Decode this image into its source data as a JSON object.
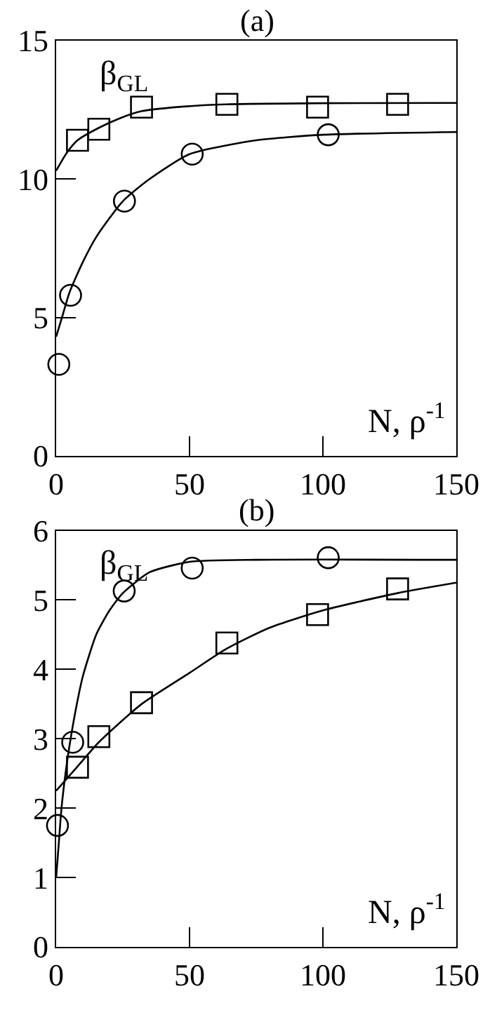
{
  "chart_data": [
    {
      "type": "scatter",
      "title": "(a)",
      "xlabel": "N, ρ$^{-1}$",
      "ylabel": "β$_{GL}$",
      "xlim": [
        0,
        150
      ],
      "ylim": [
        0,
        15
      ],
      "xticks": [
        0,
        50,
        100,
        150
      ],
      "yticks": [
        0,
        5,
        10,
        15
      ],
      "series": [
        {
          "marker": "square",
          "color": "#000000",
          "x": [
            8,
            16,
            32,
            64,
            98,
            128
          ],
          "values": [
            11.4,
            11.8,
            12.6,
            12.7,
            12.6,
            12.7
          ]
        },
        {
          "marker": "circle",
          "color": "#000000",
          "x": [
            1,
            5.4,
            25.6,
            51,
            102
          ],
          "values": [
            3.3,
            5.8,
            9.2,
            10.9,
            11.6
          ]
        },
        {
          "type": "line",
          "marker": "none",
          "line_style": "solid",
          "color": "#000000",
          "x": [
            0,
            4,
            8,
            16,
            24,
            32,
            48,
            64,
            100,
            150
          ],
          "values": [
            10.3,
            10.95,
            11.4,
            11.85,
            12.2,
            12.45,
            12.62,
            12.7,
            12.74,
            12.75
          ]
        },
        {
          "type": "line",
          "marker": "none",
          "line_style": "solid",
          "color": "#000000",
          "x": [
            0,
            2.5,
            5,
            10,
            15,
            25,
            35,
            50,
            75,
            100,
            150
          ],
          "values": [
            4.3,
            5.1,
            5.9,
            7.0,
            7.9,
            9.2,
            10.0,
            10.9,
            11.4,
            11.6,
            11.7
          ]
        }
      ]
    },
    {
      "type": "scatter",
      "title": "(b)",
      "xlabel": "N, ρ$^{-1}$",
      "ylabel": "β$_{GL}$",
      "xlim": [
        0,
        150
      ],
      "ylim": [
        0,
        6
      ],
      "xticks": [
        0,
        50,
        100,
        150
      ],
      "yticks": [
        0,
        1,
        2,
        3,
        4,
        5,
        6
      ],
      "series": [
        {
          "marker": "circle",
          "color": "#000000",
          "x": [
            0.5,
            6.2,
            25.5,
            51,
            102
          ],
          "values": [
            1.75,
            2.95,
            5.13,
            5.46,
            5.61
          ]
        },
        {
          "marker": "square",
          "color": "#000000",
          "x": [
            8,
            16,
            32,
            64,
            98,
            128
          ],
          "values": [
            2.59,
            3.03,
            3.52,
            4.38,
            4.79,
            5.16
          ]
        },
        {
          "type": "line",
          "marker": "none",
          "line_style": "solid",
          "color": "#000000",
          "x": [
            0,
            1,
            2,
            3.5,
            5,
            7.5,
            10,
            15,
            20,
            25,
            35,
            50,
            75,
            150
          ],
          "values": [
            1.0,
            1.5,
            2.0,
            2.5,
            2.9,
            3.45,
            3.9,
            4.5,
            4.85,
            5.1,
            5.4,
            5.55,
            5.58,
            5.58
          ]
        },
        {
          "type": "line",
          "marker": "none",
          "line_style": "solid",
          "color": "#000000",
          "x": [
            0,
            8,
            16,
            32,
            50,
            64,
            80,
            100,
            128,
            150
          ],
          "values": [
            2.25,
            2.6,
            2.95,
            3.5,
            3.95,
            4.3,
            4.6,
            4.85,
            5.1,
            5.25
          ]
        }
      ]
    }
  ]
}
